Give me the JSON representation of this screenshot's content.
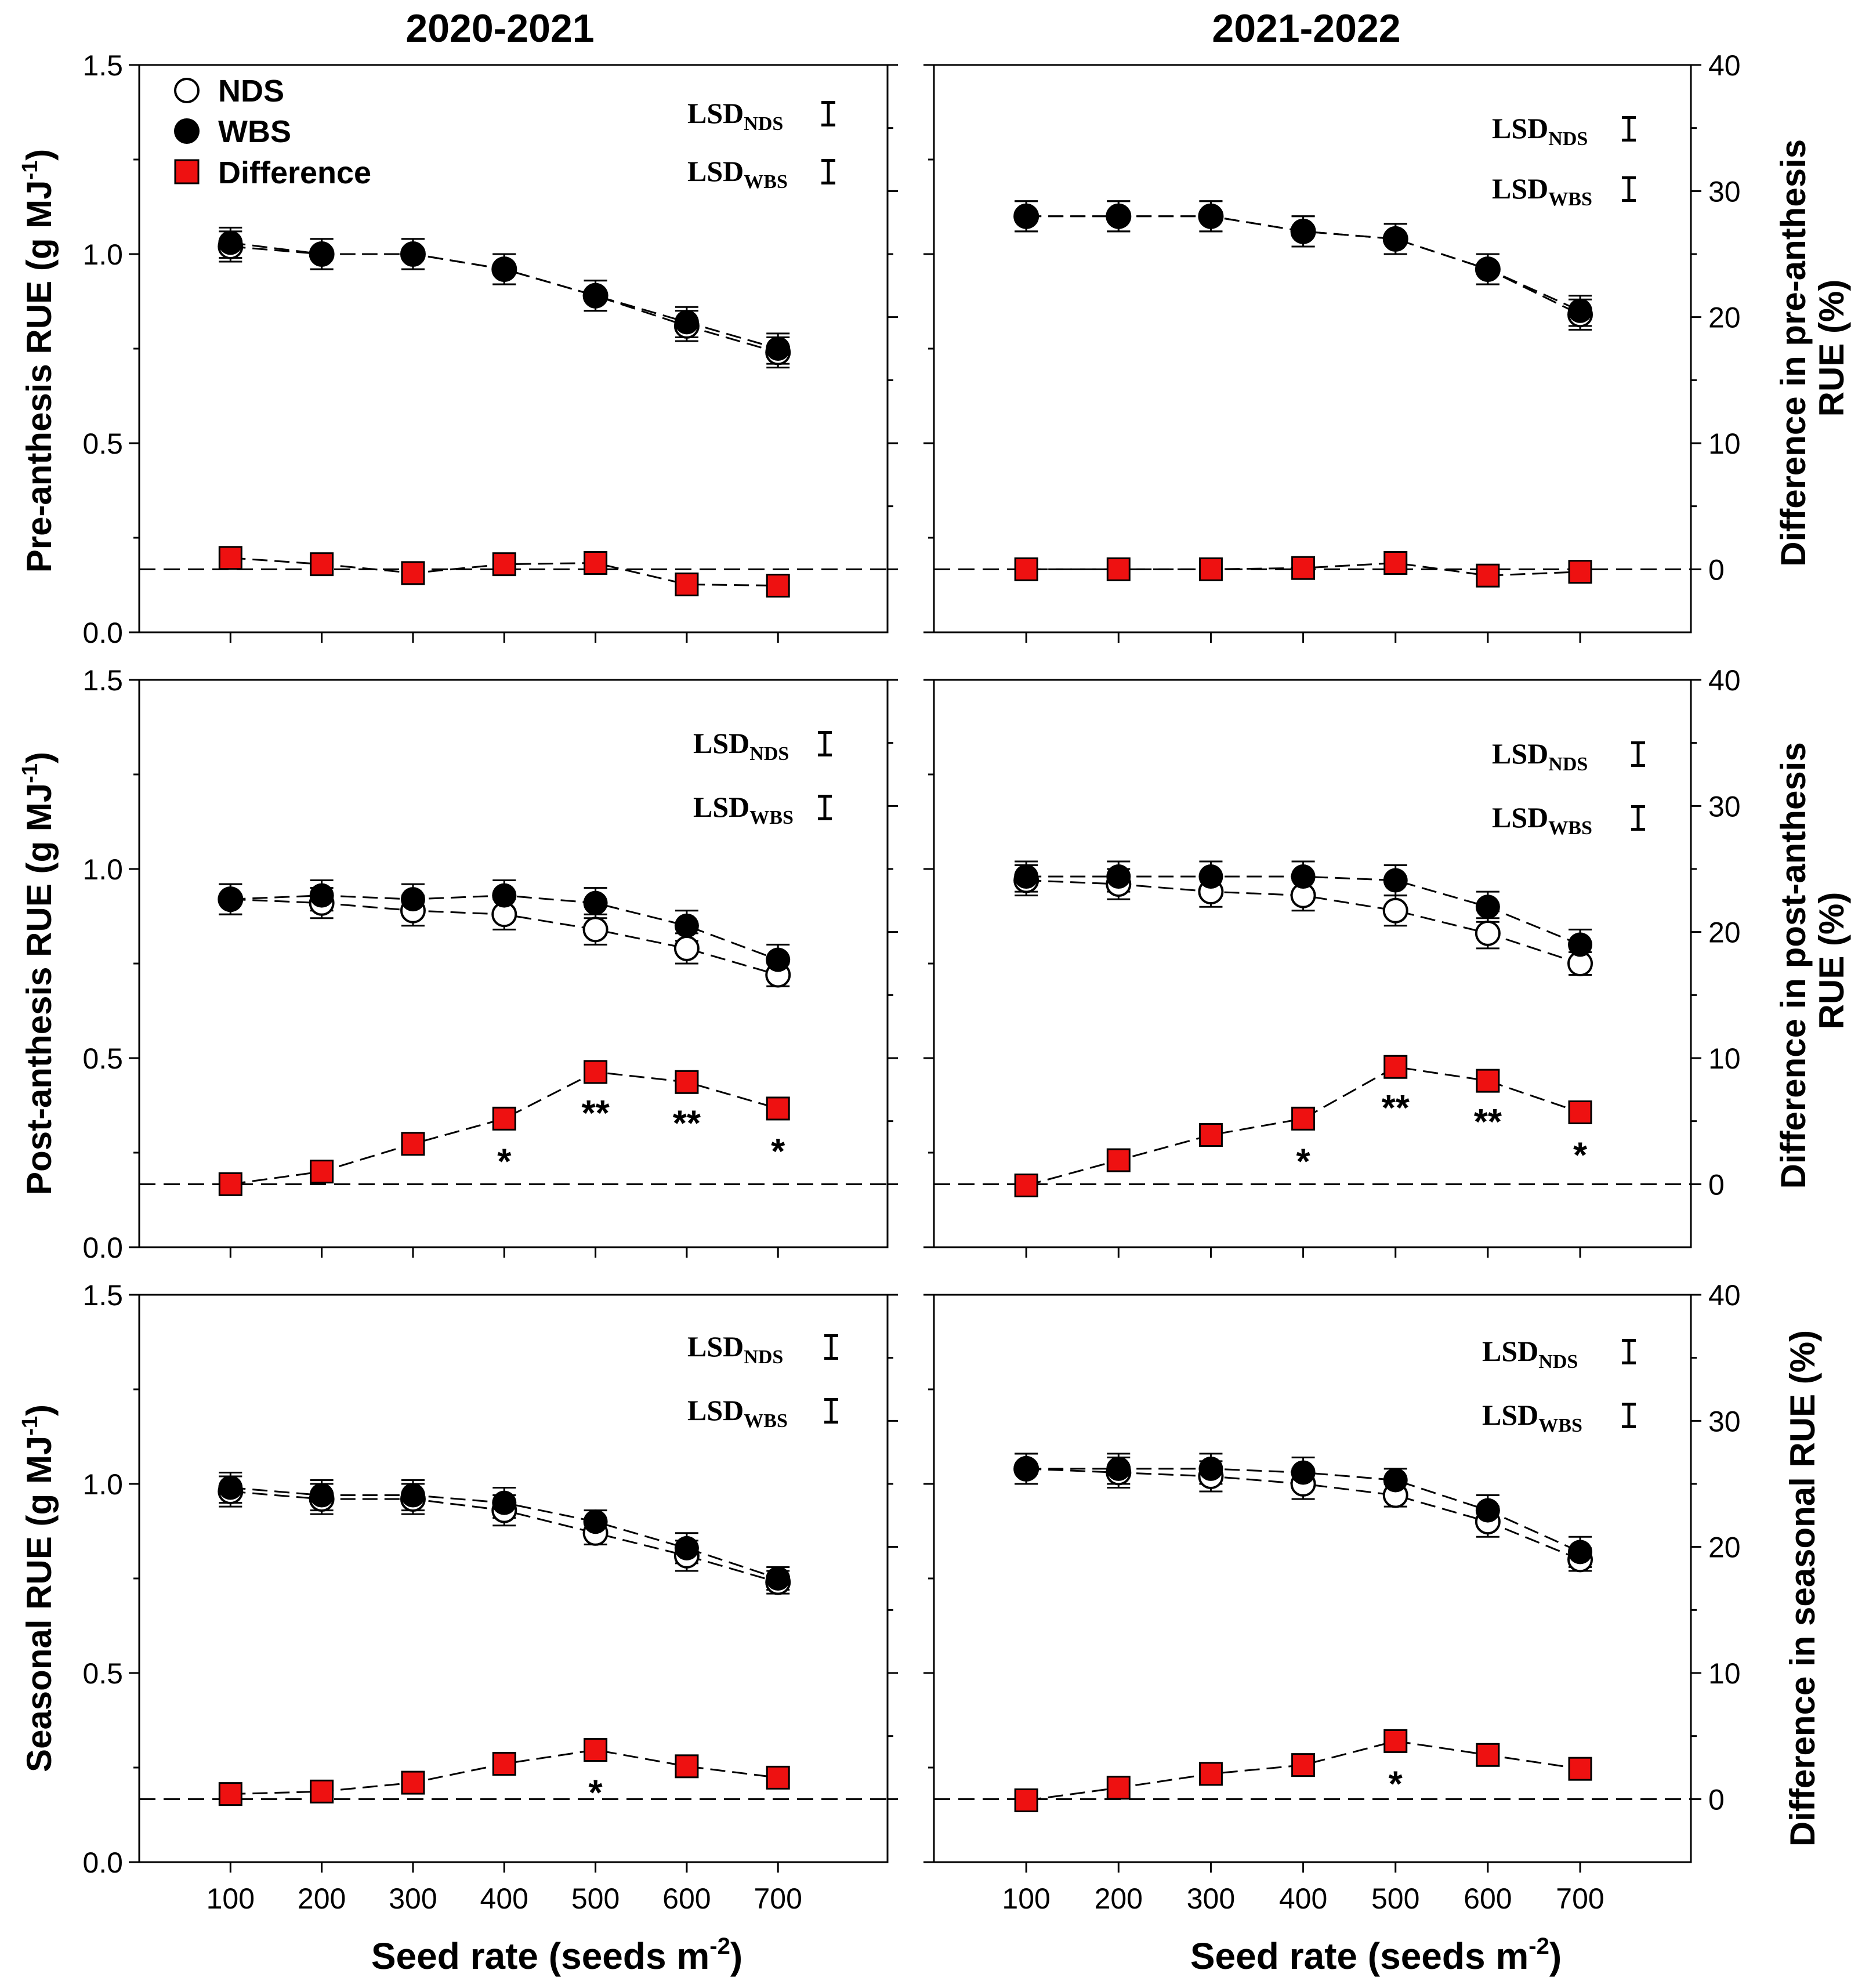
{
  "column_titles": [
    "2020-2021",
    "2021-2022"
  ],
  "xlabel_main": "Seed rate (seeds m",
  "xlabel_sup": "-2",
  "xlabel_end": ")",
  "row_ylabels": [
    {
      "main": "Pre-anthesis RUE (g MJ",
      "sup": "-1",
      "end": ")"
    },
    {
      "main": "Post-anthesis RUE (g MJ",
      "sup": "-1",
      "end": ")"
    },
    {
      "main": "Seasonal RUE (g MJ",
      "sup": "-1",
      "end": ")"
    }
  ],
  "row_y2labels": [
    [
      "Difference in pre-anthesis",
      "RUE (%)"
    ],
    [
      "Difference in post-anthesis",
      "RUE (%)"
    ],
    [
      "Difference in seasonal RUE (%)"
    ]
  ],
  "legend": {
    "nds": "NDS",
    "wbs": "WBS",
    "diff": "Difference"
  },
  "lsd_label": "LSD",
  "lsd_sub_nds": "NDS",
  "lsd_sub_wbs": "WBS",
  "colors": {
    "diff_fill": "#ee1111",
    "marker": "#000000"
  },
  "chart_data": [
    {
      "type": "line",
      "title": "2020-2021",
      "ylabel": "Pre-anthesis RUE (g MJ-1)",
      "y2label": "Difference in pre-anthesis RUE (%)",
      "x": [
        100,
        200,
        300,
        400,
        500,
        600,
        700
      ],
      "ylim": [
        0,
        1.5
      ],
      "yticks": [
        "0.0",
        "0.5",
        "1.0",
        "1.5"
      ],
      "y2lim": [
        -5,
        40
      ],
      "y2ticks": [
        0,
        10,
        20,
        30,
        40
      ],
      "series": [
        {
          "name": "NDS",
          "values": [
            1.02,
            1.0,
            1.0,
            0.96,
            0.89,
            0.81,
            0.74
          ],
          "err": [
            0.04,
            0.04,
            0.04,
            0.04,
            0.04,
            0.04,
            0.04
          ]
        },
        {
          "name": "WBS",
          "values": [
            1.03,
            1.0,
            1.0,
            0.96,
            0.89,
            0.82,
            0.75
          ],
          "err": [
            0.04,
            0.04,
            0.04,
            0.04,
            0.04,
            0.04,
            0.04
          ]
        },
        {
          "name": "Difference",
          "axis": "right",
          "values": [
            0.9,
            0.4,
            -0.3,
            0.4,
            0.5,
            -1.2,
            -1.3
          ]
        }
      ],
      "lsd": {
        "nds": 0.06,
        "wbs": 0.06
      },
      "annotations": []
    },
    {
      "type": "line",
      "title": "2021-2022",
      "ylabel": "Pre-anthesis RUE (g MJ-1)",
      "y2label": "Difference in pre-anthesis RUE (%)",
      "x": [
        100,
        200,
        300,
        400,
        500,
        600,
        700
      ],
      "ylim": [
        0,
        1.5
      ],
      "yticks": [
        "0.0",
        "0.5",
        "1.0",
        "1.5"
      ],
      "y2lim": [
        -5,
        40
      ],
      "y2ticks": [
        0,
        10,
        20,
        30,
        40
      ],
      "series": [
        {
          "name": "NDS",
          "values": [
            1.1,
            1.1,
            1.1,
            1.06,
            1.04,
            0.96,
            0.84
          ],
          "err": [
            0.04,
            0.04,
            0.04,
            0.04,
            0.04,
            0.04,
            0.04
          ]
        },
        {
          "name": "WBS",
          "values": [
            1.1,
            1.1,
            1.1,
            1.06,
            1.04,
            0.96,
            0.85
          ],
          "err": [
            0.04,
            0.04,
            0.04,
            0.04,
            0.04,
            0.04,
            0.04
          ]
        },
        {
          "name": "Difference",
          "axis": "right",
          "values": [
            0,
            0,
            0,
            0.1,
            0.5,
            -0.5,
            -0.2
          ]
        }
      ],
      "lsd": {
        "nds": 0.06,
        "wbs": 0.06
      },
      "annotations": []
    },
    {
      "type": "line",
      "title": "2020-2021",
      "ylabel": "Post-anthesis RUE (g MJ-1)",
      "y2label": "Difference in post-anthesis RUE (%)",
      "x": [
        100,
        200,
        300,
        400,
        500,
        600,
        700
      ],
      "ylim": [
        0,
        1.5
      ],
      "yticks": [
        "0.0",
        "0.5",
        "1.0",
        "1.5"
      ],
      "y2lim": [
        -5,
        40
      ],
      "y2ticks": [
        0,
        10,
        20,
        30,
        40
      ],
      "series": [
        {
          "name": "NDS",
          "values": [
            0.92,
            0.91,
            0.89,
            0.88,
            0.84,
            0.79,
            0.72
          ],
          "err": [
            0.04,
            0.04,
            0.04,
            0.04,
            0.04,
            0.04,
            0.03
          ]
        },
        {
          "name": "WBS",
          "values": [
            0.92,
            0.93,
            0.92,
            0.93,
            0.91,
            0.85,
            0.76
          ],
          "err": [
            0.04,
            0.04,
            0.04,
            0.04,
            0.04,
            0.04,
            0.04
          ]
        },
        {
          "name": "Difference",
          "axis": "right",
          "values": [
            0,
            1.0,
            3.2,
            5.2,
            8.9,
            8.1,
            6.0
          ]
        }
      ],
      "lsd": {
        "nds": 0.06,
        "wbs": 0.06
      },
      "annotations": [
        "",
        "",
        "",
        "*",
        "**",
        "**",
        "*"
      ]
    },
    {
      "type": "line",
      "title": "2021-2022",
      "ylabel": "Post-anthesis RUE (g MJ-1)",
      "y2label": "Difference in post-anthesis RUE (%)",
      "x": [
        100,
        200,
        300,
        400,
        500,
        600,
        700
      ],
      "ylim": [
        0,
        1.5
      ],
      "yticks": [
        "0.0",
        "0.5",
        "1.0",
        "1.5"
      ],
      "y2lim": [
        -5,
        40
      ],
      "y2ticks": [
        0,
        10,
        20,
        30,
        40
      ],
      "series": [
        {
          "name": "NDS",
          "values": [
            0.97,
            0.96,
            0.94,
            0.93,
            0.89,
            0.83,
            0.75
          ],
          "err": [
            0.04,
            0.04,
            0.04,
            0.04,
            0.04,
            0.04,
            0.03
          ]
        },
        {
          "name": "WBS",
          "values": [
            0.98,
            0.98,
            0.98,
            0.98,
            0.97,
            0.9,
            0.8
          ],
          "err": [
            0.04,
            0.04,
            0.04,
            0.04,
            0.04,
            0.04,
            0.04
          ]
        },
        {
          "name": "Difference",
          "axis": "right",
          "values": [
            -0.1,
            1.9,
            3.9,
            5.2,
            9.3,
            8.2,
            5.7
          ]
        }
      ],
      "lsd": {
        "nds": 0.06,
        "wbs": 0.06
      },
      "annotations": [
        "",
        "",
        "",
        "*",
        "**",
        "**",
        "*"
      ]
    },
    {
      "type": "line",
      "title": "2020-2021",
      "ylabel": "Seasonal RUE (g MJ-1)",
      "y2label": "Difference in seasonal RUE (%)",
      "x": [
        100,
        200,
        300,
        400,
        500,
        600,
        700
      ],
      "ylim": [
        0,
        1.5
      ],
      "yticks": [
        "0.0",
        "0.5",
        "1.0",
        "1.5"
      ],
      "y2lim": [
        -5,
        40
      ],
      "y2ticks": [
        0,
        10,
        20,
        30,
        40
      ],
      "series": [
        {
          "name": "NDS",
          "values": [
            0.98,
            0.96,
            0.96,
            0.93,
            0.87,
            0.81,
            0.74
          ],
          "err": [
            0.04,
            0.04,
            0.04,
            0.04,
            0.03,
            0.04,
            0.03
          ]
        },
        {
          "name": "WBS",
          "values": [
            0.99,
            0.97,
            0.97,
            0.95,
            0.9,
            0.83,
            0.75
          ],
          "err": [
            0.04,
            0.04,
            0.04,
            0.04,
            0.03,
            0.04,
            0.03
          ]
        },
        {
          "name": "Difference",
          "axis": "right",
          "values": [
            0.4,
            0.6,
            1.3,
            2.8,
            3.9,
            2.6,
            1.7
          ]
        }
      ],
      "lsd": {
        "nds": 0.06,
        "wbs": 0.06
      },
      "annotations": [
        "",
        "",
        "",
        "",
        "*",
        "",
        ""
      ]
    },
    {
      "type": "line",
      "title": "2021-2022",
      "ylabel": "Seasonal RUE (g MJ-1)",
      "y2label": "Difference in seasonal RUE (%)",
      "x": [
        100,
        200,
        300,
        400,
        500,
        600,
        700
      ],
      "ylim": [
        0,
        1.5
      ],
      "yticks": [
        "0.0",
        "0.5",
        "1.0",
        "1.5"
      ],
      "y2lim": [
        -5,
        40
      ],
      "y2ticks": [
        0,
        10,
        20,
        30,
        40
      ],
      "series": [
        {
          "name": "NDS",
          "values": [
            1.04,
            1.03,
            1.02,
            1.0,
            0.97,
            0.9,
            0.8
          ],
          "err": [
            0.04,
            0.04,
            0.04,
            0.04,
            0.03,
            0.04,
            0.03
          ]
        },
        {
          "name": "WBS",
          "values": [
            1.04,
            1.04,
            1.04,
            1.03,
            1.01,
            0.93,
            0.82
          ],
          "err": [
            0.04,
            0.04,
            0.04,
            0.04,
            0.03,
            0.04,
            0.04
          ]
        },
        {
          "name": "Difference",
          "axis": "right",
          "values": [
            -0.1,
            0.9,
            2.0,
            2.7,
            4.6,
            3.5,
            2.4
          ]
        }
      ],
      "lsd": {
        "nds": 0.06,
        "wbs": 0.06
      },
      "annotations": [
        "",
        "",
        "",
        "",
        "*",
        "",
        ""
      ]
    }
  ]
}
